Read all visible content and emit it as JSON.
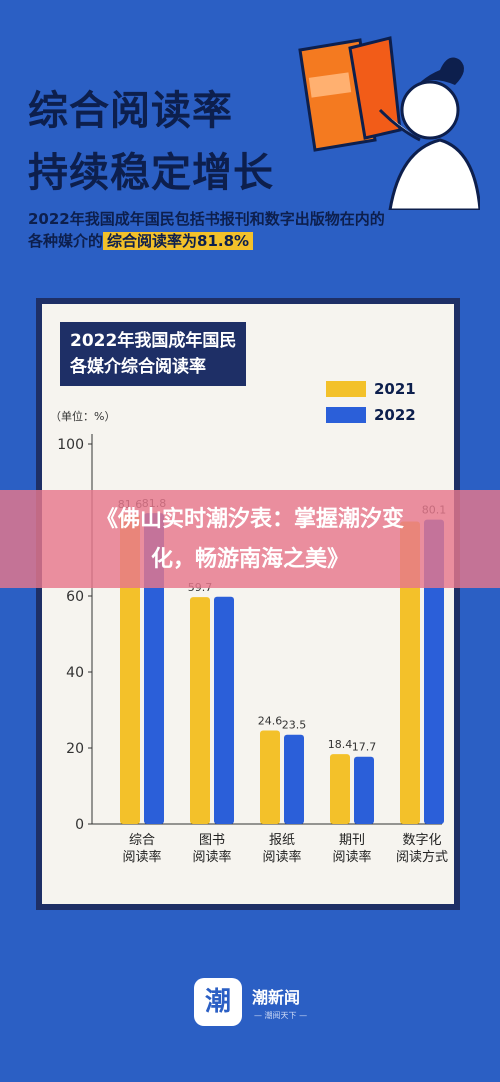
{
  "header": {
    "title_line1": "综合阅读率",
    "title_line2": "持续稳定增长",
    "subtitle_line1": "2022年我国成年国民包括书报刊和数字出版物在内的",
    "subtitle_line2_prefix": "各种媒介的",
    "subtitle_line2_highlight": "综合阅读率为81.8%"
  },
  "card": {
    "title_line1": "2022年我国成年国民",
    "title_line2": "各媒介综合阅读率",
    "unit": "（单位：%）"
  },
  "chart_data": {
    "type": "bar",
    "categories": [
      "综合\n阅读率",
      "图书\n阅读率",
      "报纸\n阅读率",
      "期刊\n阅读率",
      "数字化\n阅读方式"
    ],
    "series": [
      {
        "name": "2021",
        "color": "#f3c12a",
        "values": [
          81.6,
          59.7,
          24.6,
          18.4,
          79.6
        ]
      },
      {
        "name": "2022",
        "color": "#2b5fd9",
        "values": [
          81.8,
          59.8,
          23.5,
          17.7,
          80.1
        ]
      }
    ],
    "data_labels": [
      [
        "81.6",
        "81.8"
      ],
      [
        "59.7",
        ""
      ],
      [
        "24.6",
        "23.5"
      ],
      [
        "18.4",
        "17.7"
      ],
      [
        "",
        "80.1"
      ]
    ],
    "yticks": [
      0,
      20,
      40,
      60,
      100
    ],
    "ylim": [
      0,
      100
    ],
    "legend": "top-right",
    "grid": false
  },
  "banner": {
    "line1": "《佛山实时潮汐表：掌握潮汐变",
    "line2": "化，畅游南海之美》"
  },
  "footer": {
    "logo_char": "潮",
    "name": "潮新闻",
    "tagline": "— 潮阅天下 —"
  }
}
